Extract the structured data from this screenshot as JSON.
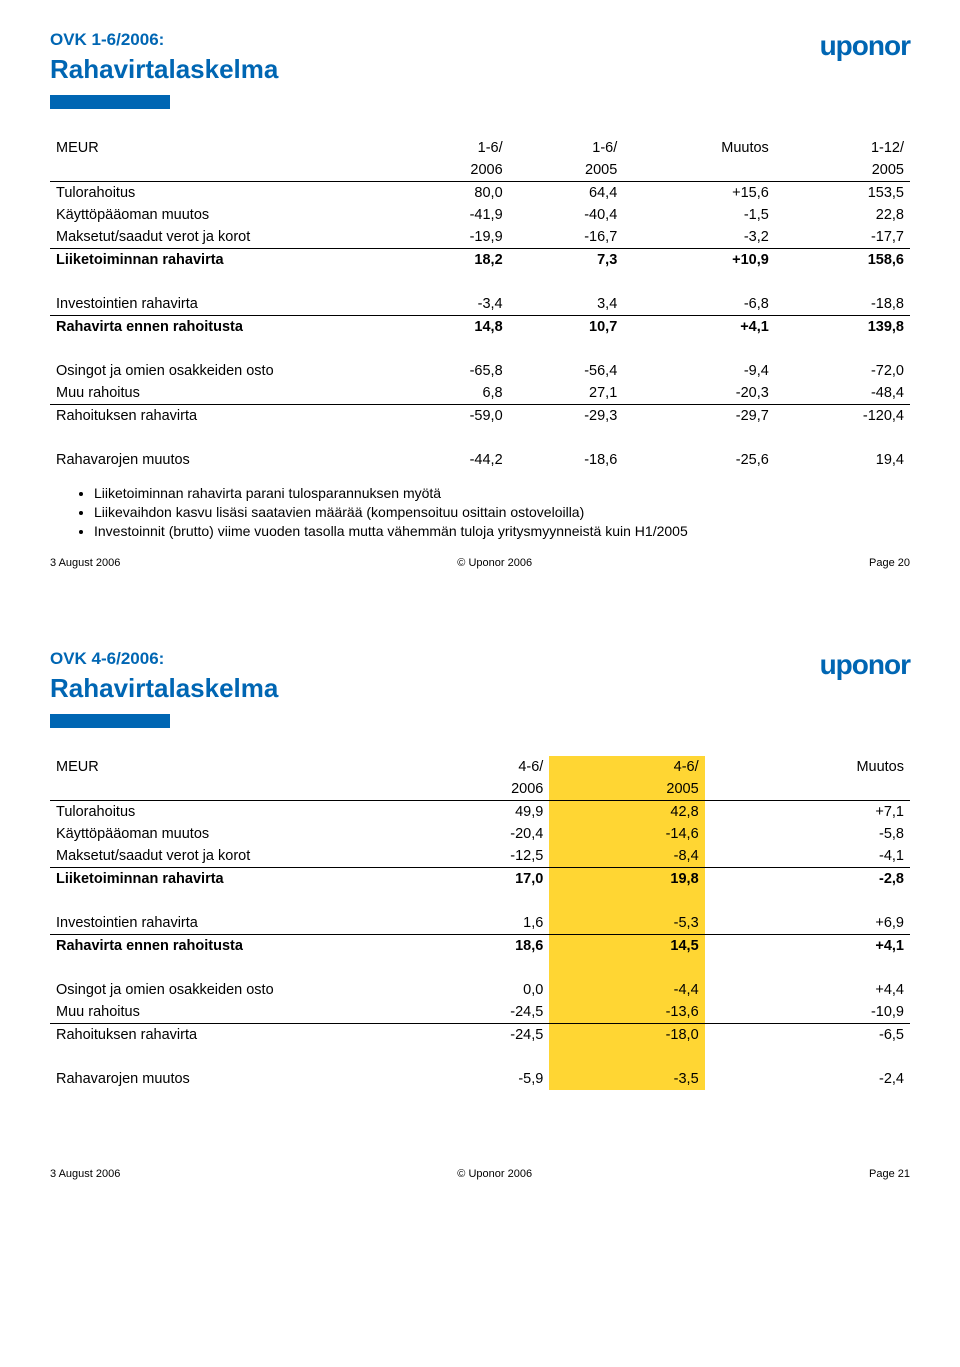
{
  "logo": "uponor",
  "slide1": {
    "pretitle": "OVK 1-6/2006:",
    "title": "Rahavirtalaskelma",
    "columns": [
      "MEUR",
      "1-6/\n2006",
      "1-6/\n2005",
      "Muutos",
      "1-12/\n2005"
    ],
    "rows": [
      {
        "label": "Tulorahoitus",
        "v": [
          "80,0",
          "64,4",
          "+15,6",
          "153,5"
        ]
      },
      {
        "label": "Käyttöpääoman muutos",
        "v": [
          "-41,9",
          "-40,4",
          "-1,5",
          "22,8"
        ]
      },
      {
        "label": "Maksetut/saadut verot ja korot",
        "v": [
          "-19,9",
          "-16,7",
          "-3,2",
          "-17,7"
        ],
        "sep": true
      },
      {
        "label": "Liiketoiminnan rahavirta",
        "v": [
          "18,2",
          "7,3",
          "+10,9",
          "158,6"
        ],
        "bold": true,
        "gap": true
      },
      {
        "label": "Investointien rahavirta",
        "v": [
          "-3,4",
          "3,4",
          "-6,8",
          "-18,8"
        ],
        "sep": true
      },
      {
        "label": "Rahavirta ennen rahoitusta",
        "v": [
          "14,8",
          "10,7",
          "+4,1",
          "139,8"
        ],
        "bold": true,
        "gap": true
      },
      {
        "label": "Osingot ja omien osakkeiden osto",
        "v": [
          "-65,8",
          "-56,4",
          "-9,4",
          "-72,0"
        ]
      },
      {
        "label": "Muu rahoitus",
        "v": [
          "6,8",
          "27,1",
          "-20,3",
          "-48,4"
        ],
        "sep": true
      },
      {
        "label": "Rahoituksen rahavirta",
        "v": [
          "-59,0",
          "-29,3",
          "-29,7",
          "-120,4"
        ],
        "gap": true
      },
      {
        "label": "Rahavarojen muutos",
        "v": [
          "-44,2",
          "-18,6",
          "-25,6",
          "19,4"
        ]
      }
    ],
    "bullets": [
      "Liiketoiminnan rahavirta parani tulosparannuksen myötä",
      "Liikevaihdon kasvu lisäsi saatavien määrää (kompensoituu osittain ostoveloilla)",
      "Investoinnit (brutto) viime vuoden tasolla mutta vähemmän tuloja yritysmyynneistä kuin H1/2005"
    ],
    "footer": {
      "date": "3 August 2006",
      "copy": "© Uponor 2006",
      "page": "Page 20"
    }
  },
  "slide2": {
    "pretitle": "OVK 4-6/2006:",
    "title": "Rahavirtalaskelma",
    "columns": [
      "MEUR",
      "4-6/\n2006",
      "4-6/\n2005",
      "Muutos"
    ],
    "highlight_col": 1,
    "rows": [
      {
        "label": "Tulorahoitus",
        "v": [
          "49,9",
          "42,8",
          "+7,1"
        ]
      },
      {
        "label": "Käyttöpääoman muutos",
        "v": [
          "-20,4",
          "-14,6",
          "-5,8"
        ]
      },
      {
        "label": "Maksetut/saadut verot ja korot",
        "v": [
          "-12,5",
          "-8,4",
          "-4,1"
        ],
        "sep": true
      },
      {
        "label": "Liiketoiminnan rahavirta",
        "v": [
          "17,0",
          "19,8",
          "-2,8"
        ],
        "bold": true,
        "gap": true
      },
      {
        "label": "Investointien rahavirta",
        "v": [
          "1,6",
          "-5,3",
          "+6,9"
        ],
        "sep": true
      },
      {
        "label": "Rahavirta ennen rahoitusta",
        "v": [
          "18,6",
          "14,5",
          "+4,1"
        ],
        "bold": true,
        "gap": true
      },
      {
        "label": "Osingot ja omien osakkeiden osto",
        "v": [
          "0,0",
          "-4,4",
          "+4,4"
        ]
      },
      {
        "label": "Muu rahoitus",
        "v": [
          "-24,5",
          "-13,6",
          "-10,9"
        ],
        "sep": true
      },
      {
        "label": "Rahoituksen rahavirta",
        "v": [
          "-24,5",
          "-18,0",
          "-6,5"
        ],
        "gap": true
      },
      {
        "label": "Rahavarojen muutos",
        "v": [
          "-5,9",
          "-3,5",
          "-2,4"
        ]
      }
    ],
    "footer": {
      "date": "3 August 2006",
      "copy": "© Uponor 2006",
      "page": "Page 21"
    }
  },
  "style": {
    "blue": "#0066b3",
    "yellow": "#ffd633",
    "col_width_pct": 15
  }
}
